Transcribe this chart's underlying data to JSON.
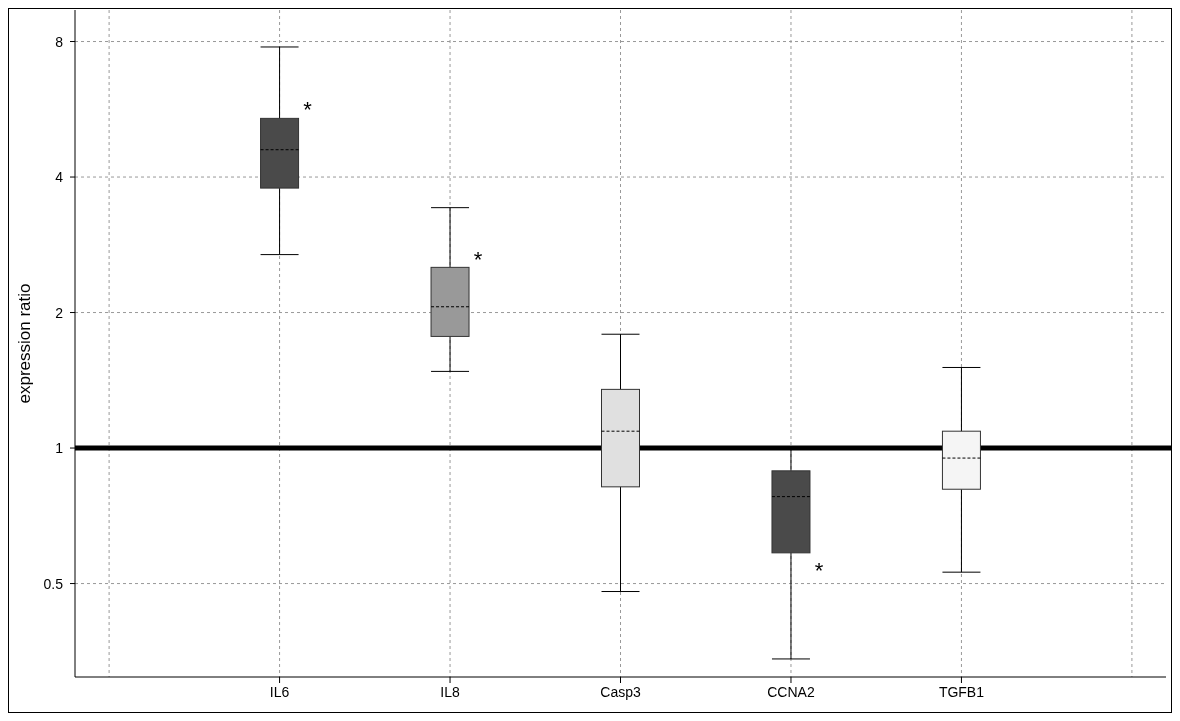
{
  "chart_data": {
    "type": "box",
    "ylabel": "expression ratio",
    "categories": [
      "IL6",
      "IL8",
      "Casp3",
      "CCNA2",
      "TGFB1"
    ],
    "boxes": [
      {
        "low": 2.69,
        "q1": 3.78,
        "median": 4.6,
        "q3": 5.4,
        "high": 7.78
      },
      {
        "low": 1.48,
        "q1": 1.77,
        "median": 2.06,
        "q3": 2.52,
        "high": 3.42
      },
      {
        "low": 0.48,
        "q1": 0.82,
        "median": 1.09,
        "q3": 1.35,
        "high": 1.79
      },
      {
        "low": 0.34,
        "q1": 0.585,
        "median": 0.78,
        "q3": 0.89,
        "high": 1.0
      },
      {
        "low": 0.53,
        "q1": 0.81,
        "median": 0.95,
        "q3": 1.09,
        "high": 1.51
      }
    ],
    "colors": [
      "#4a4a4a",
      "#999999",
      "#e0e0e0",
      "#4a4a4a",
      "#f5f5f5"
    ],
    "log": true,
    "ylim": [
      0.31,
      9.4
    ],
    "yticks": [
      0.5,
      1,
      2,
      4,
      8
    ],
    "grid": true,
    "ref_lines": [
      {
        "axis": "y",
        "value": 1,
        "color": "#000000"
      }
    ],
    "annotations": [
      {
        "text": "*",
        "x": "IL6",
        "y": 5.7
      },
      {
        "text": "*",
        "x": "IL8",
        "y": 2.65
      },
      {
        "text": "*",
        "x": "CCNA2",
        "y": 0.54
      }
    ]
  }
}
